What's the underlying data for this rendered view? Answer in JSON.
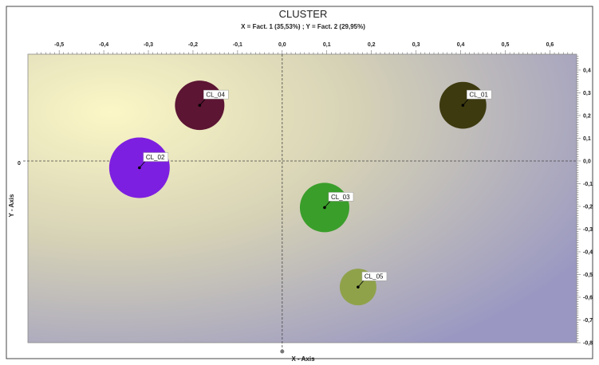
{
  "chart_data": {
    "type": "scatter",
    "title": "CLUSTER",
    "subtitle": "X = Fact. 1 (35,53%) ; Y = Fact. 2 (29,95%)",
    "xlabel": "X - Axis",
    "ylabel": "Y - Axis",
    "xlim": [
      -0.57,
      0.66
    ],
    "ylim": [
      -0.8,
      0.47
    ],
    "x_ticks": [
      "-0,5",
      "-0,4",
      "-0,3",
      "-0,2",
      "-0,1",
      "0,0",
      "0,1",
      "0,2",
      "0,3",
      "0,4",
      "0,5",
      "0,6"
    ],
    "y_ticks": [
      "0,4",
      "0,3",
      "0,2",
      "0,1",
      "0,0",
      "-0,1",
      "-0,2",
      "-0,3",
      "-0,4",
      "-0,5",
      "-0,6",
      "-0,7",
      "-0,8"
    ],
    "y_left_zero_label": "0",
    "x_bottom_zero_marker": true,
    "grid": false,
    "points": [
      {
        "label": "CL_01",
        "x": 0.405,
        "y": 0.245,
        "size": 0.9,
        "color": "#3d3a10"
      },
      {
        "label": "CL_02",
        "x": -0.32,
        "y": -0.03,
        "size": 1.5,
        "color": "#7d1fe0"
      },
      {
        "label": "CL_03",
        "x": 0.095,
        "y": -0.205,
        "size": 1.0,
        "color": "#3a9e2a"
      },
      {
        "label": "CL_04",
        "x": -0.185,
        "y": 0.245,
        "size": 1.0,
        "color": "#5c1533"
      },
      {
        "label": "CL_05",
        "x": 0.17,
        "y": -0.555,
        "size": 0.55,
        "color": "#8fa24a"
      }
    ]
  }
}
